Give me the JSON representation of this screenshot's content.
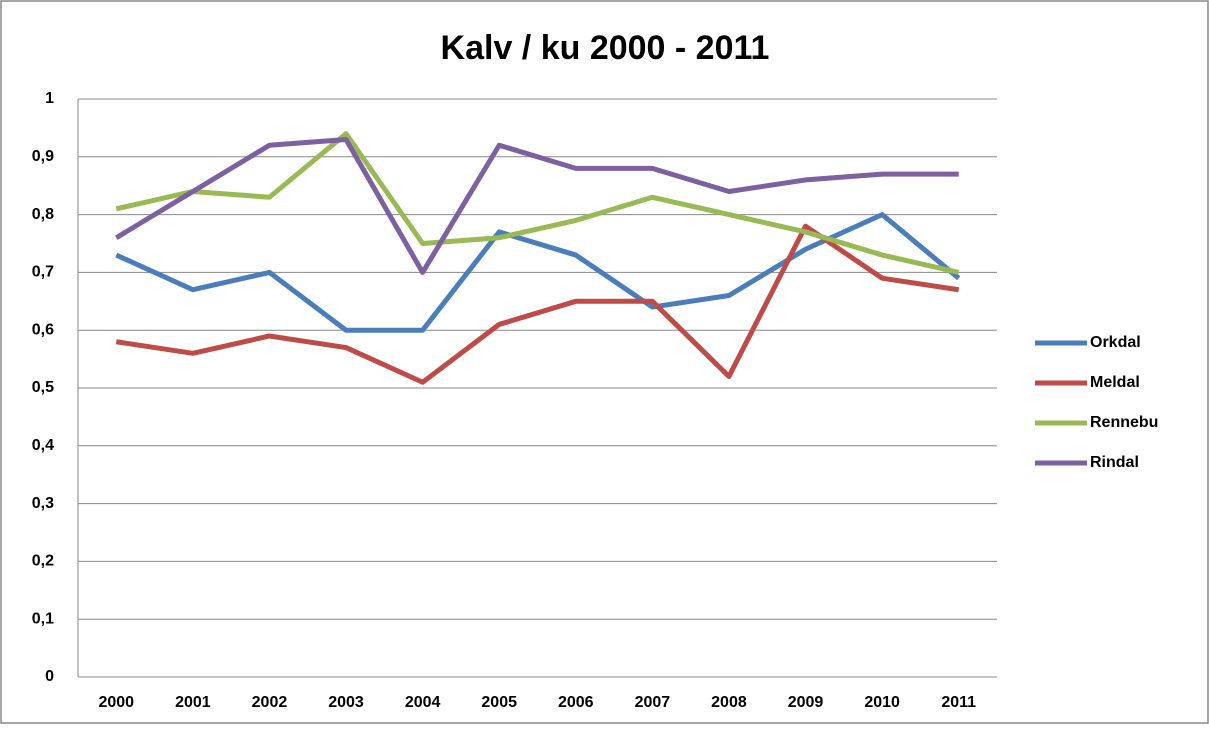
{
  "chart_data": {
    "type": "line",
    "title": "Kalv / ku 2000 - 2011",
    "categories": [
      "2000",
      "2001",
      "2002",
      "2003",
      "2004",
      "2005",
      "2006",
      "2007",
      "2008",
      "2009",
      "2010",
      "2011"
    ],
    "series": [
      {
        "name": "Orkdal",
        "color": "#4a7ebb",
        "values": [
          0.73,
          0.67,
          0.7,
          0.6,
          0.6,
          0.77,
          0.73,
          0.64,
          0.66,
          0.74,
          0.8,
          0.69
        ]
      },
      {
        "name": "Meldal",
        "color": "#be4b48",
        "values": [
          0.58,
          0.56,
          0.59,
          0.57,
          0.51,
          0.61,
          0.65,
          0.65,
          0.52,
          0.78,
          0.69,
          0.67
        ]
      },
      {
        "name": "Rennebu",
        "color": "#98b954",
        "values": [
          0.81,
          0.84,
          0.83,
          0.94,
          0.75,
          0.76,
          0.79,
          0.83,
          0.8,
          0.77,
          0.73,
          0.7
        ]
      },
      {
        "name": "Rindal",
        "color": "#7d60a0",
        "values": [
          0.76,
          0.84,
          0.92,
          0.93,
          0.7,
          0.92,
          0.88,
          0.88,
          0.84,
          0.86,
          0.87,
          0.87
        ]
      }
    ],
    "ylim": [
      0,
      1
    ],
    "yticks": [
      0,
      {
        "value": 0.1,
        "label": "0,1"
      },
      {
        "value": 0.2,
        "label": "0,2"
      },
      {
        "value": 0.3,
        "label": "0,3"
      },
      {
        "value": 0.4,
        "label": "0,4"
      },
      {
        "value": 0.5,
        "label": "0,5"
      },
      {
        "value": 0.6,
        "label": "0,6"
      },
      {
        "value": 0.7,
        "label": "0,7"
      },
      {
        "value": 0.8,
        "label": "0,8"
      },
      {
        "value": 0.9,
        "label": "0,9"
      },
      1
    ],
    "grid": true,
    "legend": "right"
  }
}
